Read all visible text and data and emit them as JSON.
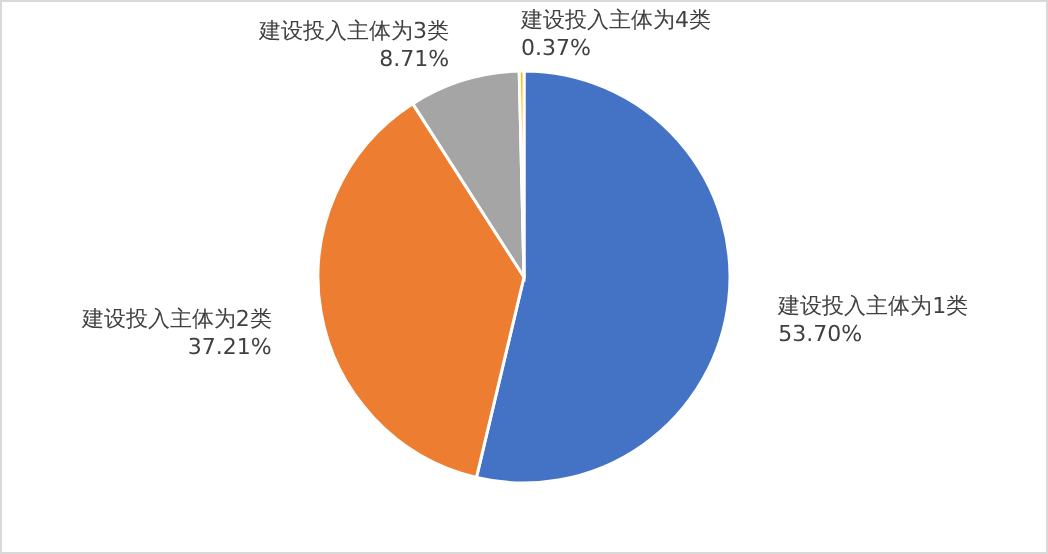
{
  "chart_data": {
    "type": "pie",
    "categories": [
      "建设投入主体为1类",
      "建设投入主体为2类",
      "建设投入主体为3类",
      "建设投入主体为4类"
    ],
    "values": [
      53.7,
      37.21,
      8.71,
      0.37
    ],
    "value_labels": [
      "53.70%",
      "37.21%",
      "8.71%",
      "0.37%"
    ],
    "colors": [
      "#4472c4",
      "#ed7d31",
      "#a5a5a5",
      "#ffc000"
    ]
  }
}
